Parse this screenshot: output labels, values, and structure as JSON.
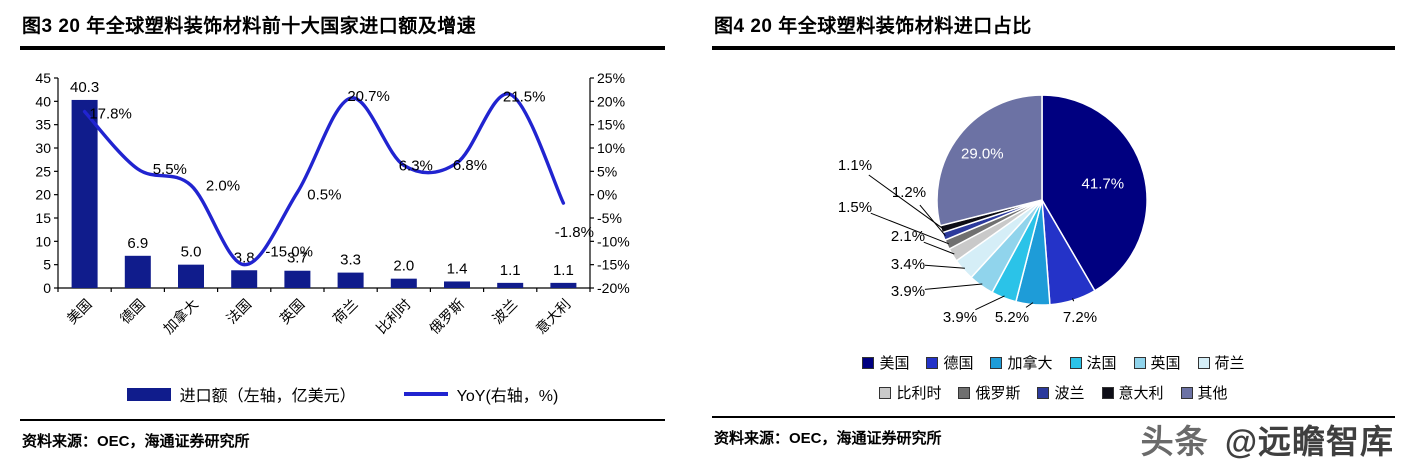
{
  "figure3": {
    "title": "图3  20 年全球塑料装饰材料前十大国家进口额及增速",
    "source": "资料来源：OEC，海通证券研究所"
  },
  "figure4": {
    "title": "图4  20 年全球塑料装饰材料进口占比",
    "source": "资料来源：OEC，海通证券研究所"
  },
  "watermark": {
    "prefix": "头条",
    "handle": "@远瞻智库",
    "prefix_color": "#6a6a6a",
    "handle_color": "#3f3f3f"
  },
  "chart_data": [
    {
      "type": "bar",
      "subtype": "bar+line-combo",
      "title": "20 年全球塑料装饰材料前十大国家进口额及增速",
      "categories": [
        "美国",
        "德国",
        "加拿大",
        "法国",
        "英国",
        "荷兰",
        "比利时",
        "俄罗斯",
        "波兰",
        "意大利"
      ],
      "series": [
        {
          "name": "进口额（左轴，亿美元）",
          "chart": "bar",
          "axis": "left",
          "color": "#101c8c",
          "values": [
            40.3,
            6.9,
            5.0,
            3.8,
            3.7,
            3.3,
            2.0,
            1.4,
            1.1,
            1.1
          ]
        },
        {
          "name": "YoY(右轴，%)",
          "chart": "line",
          "axis": "right",
          "color": "#2124d0",
          "values": [
            17.8,
            5.5,
            2.0,
            -15.0,
            0.5,
            20.7,
            6.3,
            6.8,
            21.5,
            -1.8
          ]
        }
      ],
      "left_axis": {
        "min": 0,
        "max": 45,
        "step": 5,
        "suffix": ""
      },
      "right_axis": {
        "min": -20,
        "max": 25,
        "step": 5,
        "suffix": "%"
      },
      "grid": false,
      "legend_position": "bottom"
    },
    {
      "type": "pie",
      "title": "20 年全球塑料装饰材料进口占比",
      "labels": [
        "美国",
        "德国",
        "加拿大",
        "法国",
        "英国",
        "荷兰",
        "比利时",
        "俄罗斯",
        "波兰",
        "意大利",
        "其他"
      ],
      "values": [
        41.7,
        7.2,
        5.2,
        3.9,
        3.9,
        3.4,
        2.1,
        1.5,
        1.2,
        1.1,
        29.0
      ],
      "colors": [
        "#000080",
        "#2433c8",
        "#1e9cd8",
        "#2bc3e8",
        "#90d4ec",
        "#d5eef7",
        "#c9c9c9",
        "#707070",
        "#2c3a9c",
        "#0d0d16",
        "#6c72a4"
      ],
      "legend_position": "bottom"
    }
  ]
}
